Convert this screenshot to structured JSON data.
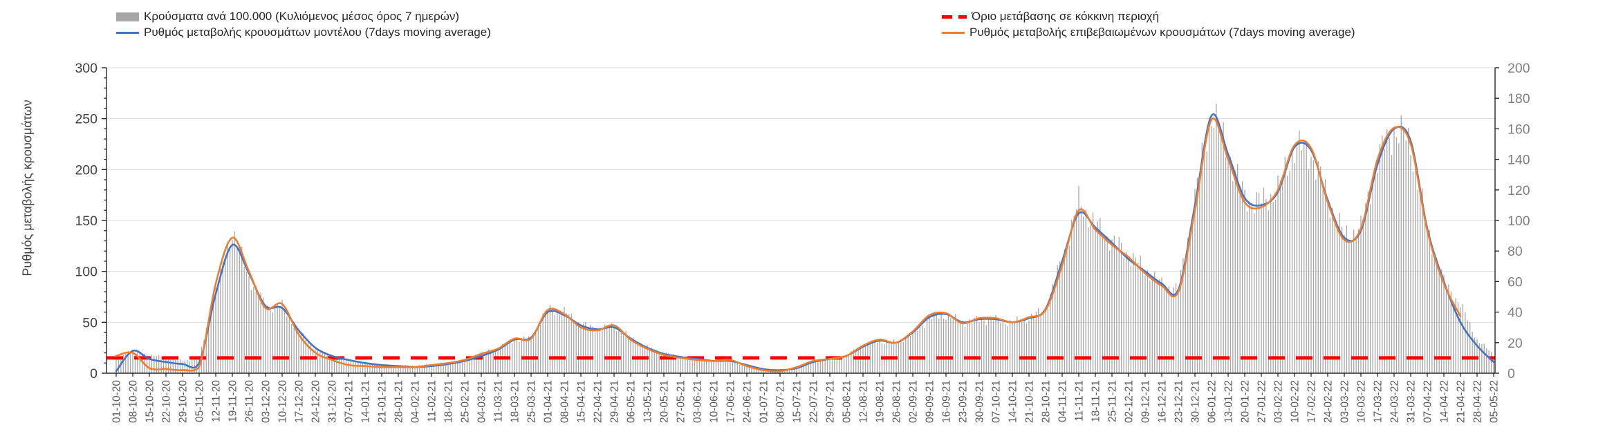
{
  "y_axis_left": {
    "title": "Ρυθμός μεταβολής κρουσμάτων",
    "min": 0,
    "max": 300,
    "tick_step": 50,
    "minor_step": 10,
    "ticks": [
      "0",
      "50",
      "100",
      "150",
      "200",
      "250",
      "300"
    ]
  },
  "y_axis_right": {
    "min": 0,
    "max": 200,
    "tick_step": 20,
    "ticks": [
      "0",
      "20",
      "40",
      "60",
      "80",
      "100",
      "120",
      "140",
      "160",
      "180",
      "200"
    ]
  },
  "legend": {
    "items": [
      {
        "label": "Κρούσματα ανά 100.000 (Κυλιόμενος μέσος όρος 7 ημερών)",
        "swatch": "bar",
        "color": "#A6A6A6"
      },
      {
        "label": "Ρυθμός μεταβολής κρουσμάτων μοντέλου (7days moving average)",
        "swatch": "line",
        "color": "#4472C4"
      },
      {
        "label": "Όριο μετάβασης σε κόκκινη περιοχή",
        "swatch": "dashed-line",
        "color": "#FF0000"
      },
      {
        "label": "Ρυθμός μεταβολής επιβεβαιωμένων κρουσμάτων (7days moving average)",
        "swatch": "line",
        "color": "#ED7D31"
      }
    ]
  },
  "threshold": {
    "value": 15,
    "color": "#FF0000",
    "label": "Όριο μετάβασης σε κόκκινη περιοχή"
  },
  "colors": {
    "bars": "#A6A6A6",
    "model_line": "#4472C4",
    "confirmed_line": "#ED7D31",
    "threshold": "#FF0000",
    "grid": "#D9D9D9",
    "axis": "#262626",
    "tick_label_left": "#404040",
    "tick_label_right": "#7F7F7F",
    "tick_label_x": "#595959"
  },
  "chart_data": {
    "type": "bar",
    "subtype": "combo-bar-and-lines",
    "title": "",
    "xlabel": "",
    "ylabel_left": "Ρυθμός μεταβολής κρουσμάτων",
    "ylim_left": [
      0,
      300
    ],
    "ylim_right": [
      0,
      200
    ],
    "grid": "horizontal",
    "legend_position": "top",
    "x": [
      "01-10-20",
      "08-10-20",
      "15-10-20",
      "22-10-20",
      "29-10-20",
      "05-11-20",
      "12-11-20",
      "19-11-20",
      "26-11-20",
      "03-12-20",
      "10-12-20",
      "17-12-20",
      "24-12-20",
      "31-12-20",
      "07-01-21",
      "14-01-21",
      "21-01-21",
      "28-01-21",
      "04-02-21",
      "11-02-21",
      "18-02-21",
      "25-02-21",
      "04-03-21",
      "11-03-21",
      "18-03-21",
      "25-03-21",
      "01-04-21",
      "08-04-21",
      "15-04-21",
      "22-04-21",
      "29-04-21",
      "06-05-21",
      "13-05-21",
      "20-05-21",
      "27-05-21",
      "03-06-21",
      "10-06-21",
      "17-06-21",
      "24-06-21",
      "01-07-21",
      "08-07-21",
      "15-07-21",
      "22-07-21",
      "29-07-21",
      "05-08-21",
      "12-08-21",
      "19-08-21",
      "26-08-21",
      "02-09-21",
      "09-09-21",
      "16-09-21",
      "23-09-21",
      "30-09-21",
      "07-10-21",
      "14-10-21",
      "21-10-21",
      "28-10-21",
      "04-11-21",
      "11-11-21",
      "18-11-21",
      "25-11-21",
      "02-12-21",
      "09-12-21",
      "16-12-21",
      "23-12-21",
      "30-12-21",
      "06-01-22",
      "13-01-22",
      "20-01-22",
      "27-01-22",
      "03-02-22",
      "10-02-22",
      "17-02-22",
      "24-02-22",
      "03-03-22",
      "10-03-22",
      "17-03-22",
      "24-03-22",
      "31-03-22",
      "07-04-22",
      "14-04-22",
      "21-04-22",
      "28-04-22",
      "05-05-22"
    ],
    "series": [
      {
        "name": "Κρούσματα ανά 100.000 (Κυλιόμενος μέσος όρος 7 ημερών)",
        "type": "bar",
        "axis": "right",
        "color": "#A6A6A6",
        "values": [
          10,
          14,
          12,
          10,
          8,
          10,
          55,
          93,
          63,
          44,
          44,
          27,
          16,
          11,
          8,
          7,
          5,
          5,
          5,
          6,
          7,
          9,
          13,
          16,
          22,
          23,
          42,
          40,
          32,
          29,
          31,
          23,
          17,
          13,
          11,
          9,
          8,
          8,
          5,
          3,
          2,
          4,
          8,
          10,
          12,
          18,
          21,
          20,
          26,
          36,
          38,
          33,
          35,
          35,
          33,
          36,
          42,
          75,
          112,
          97,
          87,
          78,
          68,
          58,
          55,
          115,
          172,
          145,
          115,
          112,
          120,
          148,
          145,
          115,
          90,
          95,
          140,
          160,
          150,
          95,
          60,
          45,
          22,
          12
        ]
      },
      {
        "name": "Ρυθμός μεταβολής κρουσμάτων μοντέλου (7days moving average)",
        "type": "line",
        "axis": "left",
        "color": "#4472C4",
        "values": [
          2,
          22,
          14,
          11,
          9,
          10,
          78,
          126,
          98,
          66,
          64,
          42,
          25,
          17,
          13,
          10,
          8,
          7,
          6,
          7,
          9,
          12,
          17,
          23,
          33,
          35,
          60,
          57,
          47,
          43,
          45,
          34,
          25,
          19,
          16,
          14,
          12,
          12,
          8,
          4,
          3,
          5,
          11,
          14,
          17,
          26,
          32,
          30,
          40,
          55,
          58,
          50,
          53,
          53,
          50,
          54,
          63,
          110,
          157,
          143,
          128,
          112,
          100,
          88,
          82,
          165,
          253,
          215,
          172,
          165,
          178,
          222,
          219,
          170,
          133,
          140,
          205,
          240,
          228,
          142,
          90,
          50,
          27,
          11
        ]
      },
      {
        "name": "Ρυθμός μεταβολής επιβεβαιωμένων κρουσμάτων (7days moving average)",
        "type": "line",
        "axis": "left",
        "color": "#ED7D31",
        "values": [
          17,
          20,
          5,
          4,
          3,
          6,
          88,
          133,
          100,
          64,
          68,
          38,
          20,
          13,
          8,
          7,
          6,
          6,
          6,
          8,
          10,
          13,
          19,
          24,
          34,
          34,
          62,
          58,
          45,
          42,
          47,
          33,
          24,
          18,
          15,
          13,
          12,
          13,
          7,
          3,
          2,
          6,
          12,
          14,
          17,
          27,
          33,
          30,
          41,
          57,
          59,
          49,
          54,
          54,
          50,
          55,
          62,
          106,
          160,
          141,
          126,
          114,
          98,
          86,
          80,
          160,
          249,
          210,
          168,
          163,
          180,
          224,
          221,
          168,
          131,
          142,
          210,
          241,
          225,
          140,
          88,
          56,
          null,
          null
        ]
      },
      {
        "name": "Όριο μετάβασης σε κόκκινη περιοχή",
        "type": "dashed-line",
        "axis": "left",
        "color": "#FF0000",
        "constant": 15
      }
    ]
  }
}
